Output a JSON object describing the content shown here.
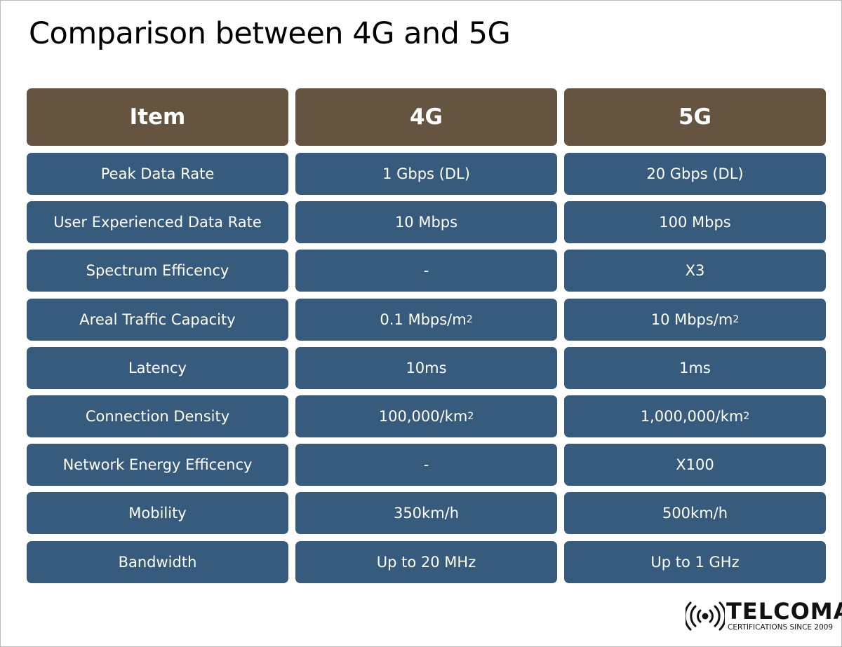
{
  "header": {
    "title": "Comparison between 4G and 5G"
  },
  "table": {
    "columns": [
      "Item",
      "4G",
      "5G"
    ],
    "rows": [
      [
        "Peak Data Rate",
        "1 Gbps (DL)",
        "20 Gbps (DL)"
      ],
      [
        "User Experienced Data Rate",
        "10 Mbps",
        "100 Mbps"
      ],
      [
        "Spectrum Efficency",
        "-",
        "X3"
      ],
      [
        "Areal Traffic Capacity",
        {
          "base": "0.1 Mbps/m",
          "sup": "2"
        },
        {
          "base": "10 Mbps/m",
          "sup": "2"
        }
      ],
      [
        "Latency",
        "10ms",
        "1ms"
      ],
      [
        "Connection Density",
        {
          "base": "100,000/km",
          "sup": "2"
        },
        {
          "base": "1,000,000/km",
          "sup": "2"
        }
      ],
      [
        "Network Energy Efficency",
        "-",
        "X100"
      ],
      [
        "Mobility",
        "350km/h",
        "500km/h"
      ],
      [
        "Bandwidth",
        "Up to 20 MHz",
        "Up to 1 GHz"
      ]
    ]
  },
  "logo": {
    "name": "TELCOMA",
    "tagline": "CERTIFICATIONS SINCE 2009"
  }
}
